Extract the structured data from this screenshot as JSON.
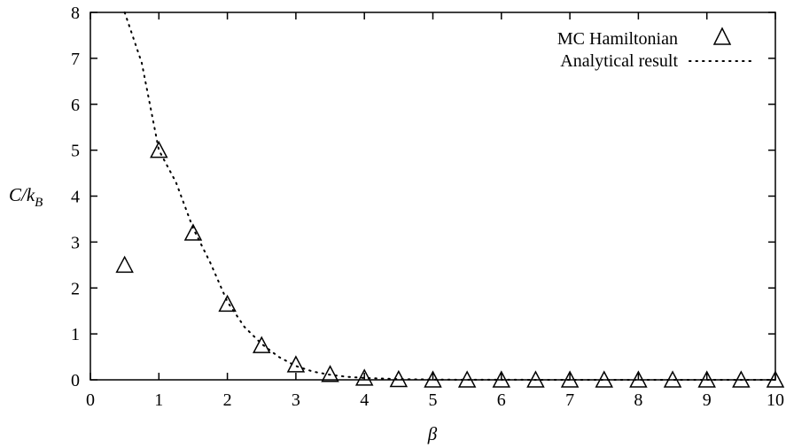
{
  "chart_data": {
    "type": "scatter",
    "xlabel": "β",
    "ylabel": "C/k_B",
    "xlim": [
      0,
      10
    ],
    "ylim": [
      0,
      8
    ],
    "x_ticks": [
      0,
      1,
      2,
      3,
      4,
      5,
      6,
      7,
      8,
      9,
      10
    ],
    "y_ticks": [
      0,
      1,
      2,
      3,
      4,
      5,
      6,
      7,
      8
    ],
    "grid": false,
    "legend_position": "top-right",
    "series": [
      {
        "name": "MC Hamiltonian",
        "style": "triangle-markers",
        "x": [
          0.5,
          1,
          1.5,
          2,
          2.5,
          3,
          3.5,
          4,
          4.5,
          5,
          5.5,
          6,
          6.5,
          7,
          7.5,
          8,
          8.5,
          9,
          9.5,
          10
        ],
        "y": [
          2.5,
          5.0,
          3.2,
          1.65,
          0.75,
          0.33,
          0.12,
          0.04,
          0.01,
          0,
          0,
          0,
          0,
          0,
          0,
          0,
          0,
          0,
          0,
          0
        ]
      },
      {
        "name": "Analytical result",
        "style": "dotted-line",
        "x": [
          0.5,
          0.75,
          1,
          1.25,
          1.5,
          1.75,
          2,
          2.25,
          2.5,
          2.75,
          3,
          3.25,
          3.5,
          3.75,
          4,
          4.5,
          5,
          5.5,
          6,
          7,
          8,
          9,
          10
        ],
        "y": [
          8.0,
          6.9,
          5.0,
          4.3,
          3.3,
          2.55,
          1.7,
          1.15,
          0.78,
          0.5,
          0.3,
          0.18,
          0.11,
          0.065,
          0.04,
          0.015,
          0.005,
          0.002,
          0.001,
          0,
          0,
          0,
          0
        ]
      }
    ]
  }
}
